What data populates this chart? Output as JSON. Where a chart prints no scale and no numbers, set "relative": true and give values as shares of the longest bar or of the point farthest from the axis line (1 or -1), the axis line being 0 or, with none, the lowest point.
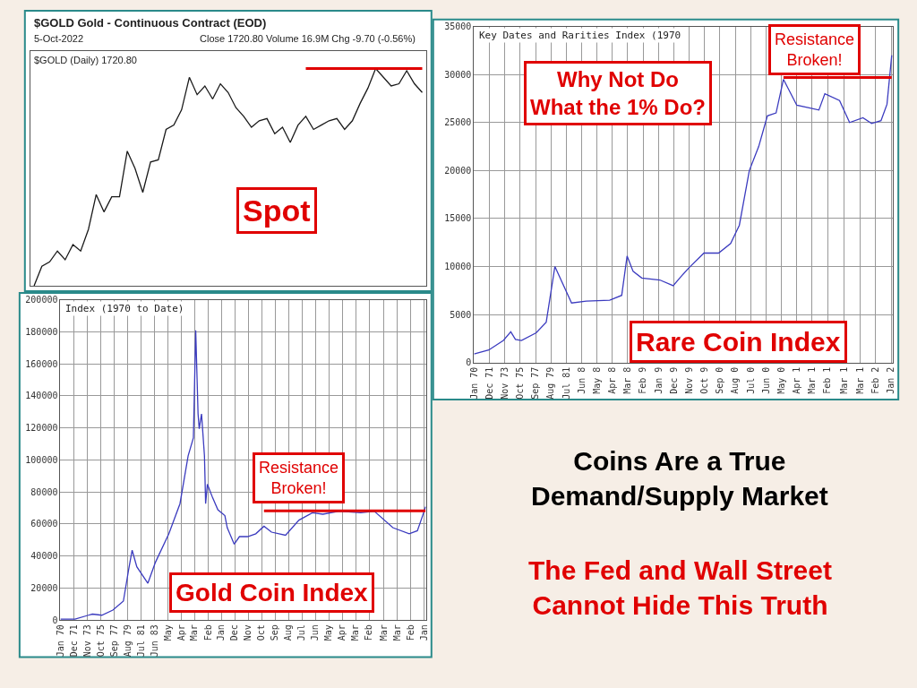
{
  "chart_data": [
    {
      "type": "line",
      "relative": true,
      "title": "$GOLD Gold - Continuous Contract (EOD)",
      "subtitle": "5-Oct-2022",
      "annotations": [
        "Close 1720.80 Volume 16.9M Chg -9.70 (-0.56%)",
        "$GOLD (Daily) 1720.80",
        "Spot"
      ],
      "categories": [
        null,
        null,
        null,
        null,
        null,
        null,
        null,
        null,
        null,
        null,
        null,
        null,
        null,
        null,
        null,
        null,
        null,
        null,
        null,
        null,
        null,
        null,
        null,
        null,
        null,
        null,
        null,
        null,
        null,
        null,
        null,
        null,
        null,
        null,
        null,
        null,
        null,
        null,
        null,
        null,
        null,
        null,
        null,
        null,
        null,
        null,
        null,
        null,
        null,
        null,
        null
      ],
      "series": [
        {
          "color": "#1a1a1a",
          "values": [
            0,
            0.09,
            0.11,
            0.16,
            0.12,
            0.19,
            0.16,
            0.26,
            0.42,
            0.34,
            0.41,
            0.41,
            0.62,
            0.54,
            0.43,
            0.57,
            0.58,
            0.72,
            0.74,
            0.81,
            0.96,
            0.88,
            0.92,
            0.86,
            0.93,
            0.89,
            0.82,
            0.78,
            0.73,
            0.76,
            0.77,
            0.7,
            0.73,
            0.66,
            0.74,
            0.78,
            0.72,
            0.74,
            0.76,
            0.77,
            0.72,
            0.76,
            0.84,
            0.91,
            1,
            0.96,
            0.92,
            0.93,
            0.99,
            0.93,
            0.89
          ]
        }
      ],
      "ref_lines": [
        {
          "axis": "y",
          "value": 1,
          "color": "#e00000"
        }
      ]
    },
    {
      "type": "line",
      "title": "Key Dates and Rarities Index (1970",
      "annotations": [
        "Why Not Do\nWhat the 1% Do?",
        "Resistance\nBroken!",
        "Rare Coin Index"
      ],
      "xlim": [
        "1970-01",
        "2022-04"
      ],
      "ylim": [
        0,
        35000
      ],
      "yticks": [
        0,
        5000,
        10000,
        15000,
        20000,
        25000,
        30000,
        35000
      ],
      "xticks": [
        {
          "value": "1970-01",
          "label": "Jan 70"
        },
        {
          "value": "1971-12",
          "label": "Dec 71"
        },
        {
          "value": "1973-11",
          "label": "Nov 73"
        },
        {
          "value": "1975-10",
          "label": "Oct 75"
        },
        {
          "value": "1977-09",
          "label": "Sep 77"
        },
        {
          "value": "1979-08",
          "label": "Aug 79"
        },
        {
          "value": "1981-07",
          "label": "Jul 81"
        },
        {
          "value": "1983-06",
          "label": "Jun 8"
        },
        {
          "value": "1985-05",
          "label": "May 8"
        },
        {
          "value": "1987-04",
          "label": "Apr 8"
        },
        {
          "value": "1989-03",
          "label": "Mar 8"
        },
        {
          "value": "1991-02",
          "label": "Feb 9"
        },
        {
          "value": "1993-01",
          "label": "Jan 9"
        },
        {
          "value": "1994-12",
          "label": "Dec 9"
        },
        {
          "value": "1996-11",
          "label": "Nov 9"
        },
        {
          "value": "1998-10",
          "label": "Oct 9"
        },
        {
          "value": "2000-09",
          "label": "Sep 0"
        },
        {
          "value": "2002-08",
          "label": "Aug 0"
        },
        {
          "value": "2004-07",
          "label": "Jul 0"
        },
        {
          "value": "2006-06",
          "label": "Jun 0"
        },
        {
          "value": "2008-05",
          "label": "May 0"
        },
        {
          "value": "2010-04",
          "label": "Apr 1"
        },
        {
          "value": "2012-03",
          "label": "Mar 1"
        },
        {
          "value": "2014-02",
          "label": "Feb 1"
        },
        {
          "value": "2016-03",
          "label": "Mar 1"
        },
        {
          "value": "2018-03",
          "label": "Mar 1"
        },
        {
          "value": "2020-02",
          "label": "Feb 2"
        },
        {
          "value": "2022-01",
          "label": "Jan 2"
        }
      ],
      "grid": true,
      "x": [
        "1970-01",
        "1971-11",
        "1973-09",
        "1974-08",
        "1975-03",
        "1975-12",
        "1977-10",
        "1979-01",
        "1980-02",
        "1982-03",
        "1984-01",
        "1986-12",
        "1988-06",
        "1989-02",
        "1989-11",
        "1990-12",
        "1993-03",
        "1994-11",
        "1995-10",
        "1996-11",
        "1998-09",
        "2000-07",
        "2002-01",
        "2003-02",
        "2004-05",
        "2005-07",
        "2006-08",
        "2007-09",
        "2008-08",
        "2010-04",
        "2011-12",
        "2013-01",
        "2013-10",
        "2015-08",
        "2016-11",
        "2018-07",
        "2019-08",
        "2020-10",
        "2021-07",
        "2022-02"
      ],
      "series": [
        {
          "color": "#3b3bbf",
          "values": [
            900,
            1300,
            2300,
            3200,
            2400,
            2300,
            3100,
            4200,
            10000,
            6200,
            6400,
            6500,
            7000,
            11100,
            9500,
            8800,
            8600,
            8000,
            8900,
            9900,
            11400,
            11400,
            12400,
            14300,
            20000,
            22500,
            25700,
            26000,
            29500,
            26800,
            26500,
            26300,
            28000,
            27300,
            25000,
            25500,
            24900,
            25200,
            26900,
            32000
          ]
        }
      ],
      "ref_lines": [
        {
          "axis": "y",
          "value": 29700,
          "color": "#e00000"
        }
      ]
    },
    {
      "type": "line",
      "title": "Index (1970 to Date)",
      "annotations": [
        "Resistance\nBroken!",
        "Gold Coin Index"
      ],
      "xlim": [
        "1970-01",
        "2022-04"
      ],
      "ylim": [
        0,
        200000
      ],
      "yticks": [
        0,
        20000,
        40000,
        60000,
        80000,
        100000,
        120000,
        140000,
        160000,
        180000,
        200000
      ],
      "xticks": [
        {
          "value": "1970-01",
          "label": "Jan 70"
        },
        {
          "value": "1971-12",
          "label": "Dec 71"
        },
        {
          "value": "1973-11",
          "label": "Nov 73"
        },
        {
          "value": "1975-10",
          "label": "Oct 75"
        },
        {
          "value": "1977-09",
          "label": "Sep 77"
        },
        {
          "value": "1979-08",
          "label": "Aug 79"
        },
        {
          "value": "1981-07",
          "label": "Jul 81"
        },
        {
          "value": "1983-06",
          "label": "Jun 83"
        },
        {
          "value": "1985-05",
          "label": "May"
        },
        {
          "value": "1987-04",
          "label": "Apr"
        },
        {
          "value": "1989-03",
          "label": "Mar"
        },
        {
          "value": "1991-02",
          "label": "Feb"
        },
        {
          "value": "1993-01",
          "label": "Jan"
        },
        {
          "value": "1994-12",
          "label": "Dec"
        },
        {
          "value": "1996-11",
          "label": "Nov"
        },
        {
          "value": "1998-10",
          "label": "Oct"
        },
        {
          "value": "2000-09",
          "label": "Sep"
        },
        {
          "value": "2002-08",
          "label": "Aug"
        },
        {
          "value": "2004-07",
          "label": "Jul"
        },
        {
          "value": "2006-06",
          "label": "Jun"
        },
        {
          "value": "2008-05",
          "label": "May"
        },
        {
          "value": "2010-04",
          "label": "Apr"
        },
        {
          "value": "2012-03",
          "label": "Mar"
        },
        {
          "value": "2014-02",
          "label": "Feb"
        },
        {
          "value": "2016-03",
          "label": "Mar"
        },
        {
          "value": "2018-03",
          "label": "Mar"
        },
        {
          "value": "2020-02",
          "label": "Feb"
        },
        {
          "value": "2022-01",
          "label": "Jan"
        }
      ],
      "grid": true,
      "x": [
        "1970-01",
        "1972-02",
        "1974-01",
        "1974-08",
        "1975-12",
        "1977-07",
        "1979-01",
        "1979-10",
        "1980-04",
        "1980-12",
        "1982-07",
        "1983-08",
        "1985-07",
        "1987-02",
        "1988-04",
        "1989-01",
        "1989-05",
        "1989-09",
        "1989-11",
        "1990-03",
        "1990-08",
        "1990-10",
        "1991-01",
        "1991-10",
        "1992-07",
        "1993-07",
        "1993-11",
        "1994-11",
        "1995-08",
        "1996-10",
        "1997-12",
        "1999-02",
        "2000-03",
        "2002-03",
        "2004-02",
        "2006-01",
        "2007-07",
        "2009-11",
        "2012-12",
        "2014-11",
        "2017-07",
        "2019-11",
        "2021-01",
        "2021-10",
        "2022-03"
      ],
      "series": [
        {
          "color": "#3b3bbf",
          "values": [
            500,
            500,
            3000,
            3700,
            3000,
            6200,
            11800,
            31500,
            43600,
            33300,
            23000,
            36100,
            53900,
            72700,
            102600,
            113900,
            181000,
            128800,
            119500,
            128800,
            102600,
            72700,
            84800,
            76400,
            68900,
            65200,
            57700,
            47400,
            52100,
            52100,
            53900,
            58600,
            54900,
            53000,
            62400,
            67000,
            66100,
            68000,
            67000,
            68000,
            57700,
            53900,
            55800,
            65200,
            70800
          ]
        }
      ],
      "ref_lines": [
        {
          "axis": "y",
          "value": 68200,
          "color": "#e00000"
        }
      ]
    },
    {
      "type": "other",
      "annotations": [
        "Coins Are a True\nDemand/Supply Market",
        "The Fed and Wall Street\nCannot Hide This Truth"
      ]
    }
  ]
}
